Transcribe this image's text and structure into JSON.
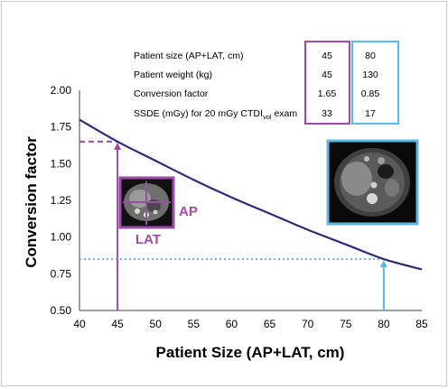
{
  "chart_data": {
    "type": "line",
    "xlabel": "Patient Size (AP+LAT, cm)",
    "ylabel": "Conversion factor",
    "xlim": [
      40,
      85
    ],
    "ylim": [
      0.5,
      2.0
    ],
    "x_ticks": [
      "40",
      "45",
      "50",
      "55",
      "60",
      "65",
      "70",
      "75",
      "80",
      "85"
    ],
    "y_ticks": [
      "0.50",
      "0.75",
      "1.00",
      "1.25",
      "1.50",
      "1.75",
      "2.00"
    ],
    "series": [
      {
        "x": [
          40,
          45,
          50,
          55,
          60,
          65,
          70,
          75,
          80,
          85
        ],
        "values": [
          1.8,
          1.65,
          1.52,
          1.39,
          1.27,
          1.16,
          1.05,
          0.95,
          0.85,
          0.78
        ]
      }
    ],
    "markers": [
      {
        "x": 45,
        "y": 1.65,
        "color": "#9e4aa8",
        "line_style": "dashed"
      },
      {
        "x": 80,
        "y": 0.85,
        "color": "#5bb8e6",
        "line_style": "dotted"
      }
    ],
    "inset_labels": {
      "ap": "AP",
      "lat": "LAT"
    },
    "table": {
      "rows": [
        {
          "label": "Patient size (AP+LAT, cm)",
          "v1": "45",
          "v2": "80"
        },
        {
          "label": "Patient weight (kg)",
          "v1": "45",
          "v2": "130"
        },
        {
          "label": "Conversion factor",
          "v1": "1.65",
          "v2": "0.85"
        },
        {
          "label_main": "SSDE (mGy) for 20 mGy CTDI",
          "label_sub": "vol",
          "label_tail": " exam",
          "v1": "33",
          "v2": "17"
        }
      ]
    },
    "colors": {
      "curve": "#2e2a7a",
      "purple": "#9e4aa8",
      "blue": "#5bb8e6"
    },
    "grid": false
  }
}
